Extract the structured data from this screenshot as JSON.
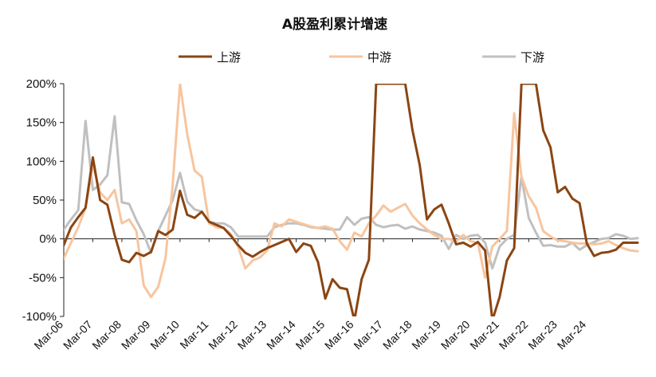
{
  "chart_data": {
    "type": "line",
    "title": "A股盈利累计增速",
    "xlabel": "",
    "ylabel": "",
    "y_unit": "%",
    "ylim": [
      -100,
      200
    ],
    "y_ticks": [
      200,
      150,
      100,
      50,
      0,
      -50,
      -100
    ],
    "y_tick_labels": [
      "200%",
      "150%",
      "100%",
      "50%",
      "0%",
      "-50%",
      "-100%"
    ],
    "x_tick_labels": [
      "Mar-06",
      "Mar-07",
      "Mar-08",
      "Mar-09",
      "Mar-10",
      "Mar-11",
      "Mar-12",
      "Mar-13",
      "Mar-14",
      "Mar-15",
      "Mar-16",
      "Mar-17",
      "Mar-18",
      "Mar-19",
      "Mar-20",
      "Mar-21",
      "Mar-22",
      "Mar-23",
      "Mar-24"
    ],
    "x_start": "2006-03",
    "x_end": "2024-09",
    "frequency": "quarterly",
    "grid": false,
    "legend_position": "top",
    "series": [
      {
        "name": "上游",
        "color": "#8B4513",
        "values": [
          -8,
          15,
          28,
          40,
          105,
          50,
          44,
          5,
          -27,
          -30,
          -18,
          -22,
          -17,
          10,
          5,
          12,
          62,
          31,
          27,
          35,
          22,
          18,
          14,
          4,
          -8,
          -18,
          -23,
          -17,
          -12,
          -8,
          -4,
          0,
          -17,
          -6,
          -9,
          -30,
          -77,
          -52,
          -63,
          -65,
          -105,
          -52,
          -27,
          200,
          200,
          200,
          200,
          200,
          140,
          95,
          25,
          38,
          44,
          20,
          -7,
          -5,
          -10,
          -4,
          -15,
          -105,
          -75,
          -28,
          -12,
          200,
          200,
          200,
          140,
          118,
          60,
          67,
          52,
          46,
          -6,
          -22,
          -18,
          -17,
          -14,
          -5,
          -5,
          -5
        ],
        "note_clipped": "values at 200 run beyond the top of the plot area"
      },
      {
        "name": "中游",
        "color": "#F7C59F",
        "values": [
          -25,
          -5,
          15,
          40,
          95,
          60,
          50,
          63,
          20,
          25,
          10,
          -60,
          -75,
          -62,
          -25,
          70,
          200,
          135,
          88,
          80,
          20,
          15,
          14,
          6,
          -10,
          -38,
          -28,
          -24,
          -15,
          20,
          16,
          25,
          22,
          19,
          16,
          14,
          16,
          13,
          -3,
          -14,
          8,
          3,
          20,
          30,
          43,
          35,
          40,
          45,
          30,
          20,
          12,
          5,
          0,
          0,
          -3,
          5,
          -3,
          -5,
          -50,
          -10,
          0,
          10,
          162,
          80,
          55,
          40,
          10,
          3,
          -2,
          -3,
          -5,
          -6,
          -6,
          -7,
          -6,
          -3,
          -8,
          -12,
          -15,
          -16
        ]
      },
      {
        "name": "下游",
        "color": "#C0C0C0",
        "values": [
          12,
          25,
          37,
          152,
          63,
          70,
          82,
          158,
          47,
          45,
          24,
          6,
          -18,
          10,
          30,
          50,
          85,
          48,
          38,
          35,
          22,
          20,
          20,
          15,
          3,
          3,
          3,
          3,
          3,
          15,
          18,
          20,
          20,
          18,
          15,
          14,
          13,
          12,
          12,
          28,
          18,
          26,
          28,
          18,
          15,
          17,
          18,
          13,
          16,
          12,
          10,
          8,
          4,
          -13,
          5,
          0,
          4,
          5,
          -5,
          -38,
          -10,
          0,
          5,
          80,
          27,
          8,
          -9,
          -8,
          -10,
          -10,
          -5,
          -14,
          -8,
          -4,
          0,
          1,
          6,
          4,
          0,
          1
        ]
      }
    ]
  }
}
